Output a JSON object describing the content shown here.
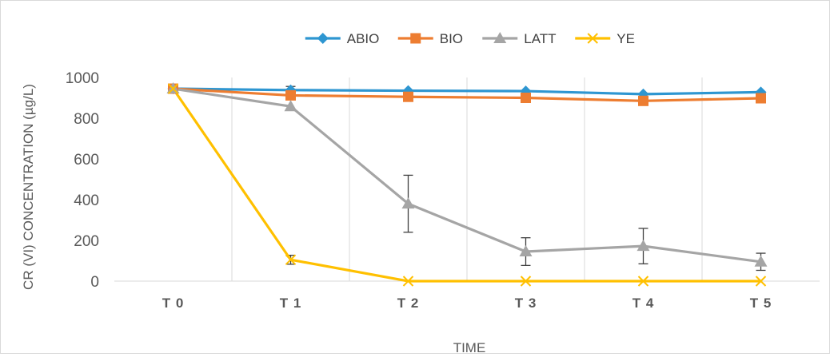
{
  "chart_data": {
    "type": "line",
    "title": "",
    "xlabel": "TIME",
    "ylabel": "CR (VI) CONCENTRATION (µg/L)",
    "categories": [
      "T0",
      "T1",
      "T2",
      "T3",
      "T4",
      "T5"
    ],
    "ylim": [
      0,
      1000
    ],
    "yticks": [
      0,
      200,
      400,
      600,
      800,
      1000
    ],
    "grid": "vertical",
    "legend_position": "top",
    "series": [
      {
        "name": "ABIO",
        "color": "#2e96d1",
        "marker": "diamond",
        "values": [
          945,
          938,
          935,
          933,
          918,
          928
        ],
        "error": [
          0,
          18,
          0,
          0,
          0,
          0
        ]
      },
      {
        "name": "BIO",
        "color": "#ed7d31",
        "marker": "square",
        "values": [
          945,
          912,
          905,
          900,
          885,
          898
        ],
        "error": [
          0,
          0,
          0,
          0,
          0,
          0
        ]
      },
      {
        "name": "LATT",
        "color": "#a5a5a5",
        "marker": "triangle",
        "values": [
          945,
          858,
          380,
          145,
          172,
          95
        ],
        "error": [
          0,
          0,
          140,
          68,
          87,
          42
        ]
      },
      {
        "name": "YE",
        "color": "#ffc000",
        "marker": "x",
        "values": [
          945,
          105,
          0,
          0,
          0,
          0
        ],
        "error": [
          0,
          22,
          0,
          0,
          0,
          0
        ]
      }
    ]
  }
}
